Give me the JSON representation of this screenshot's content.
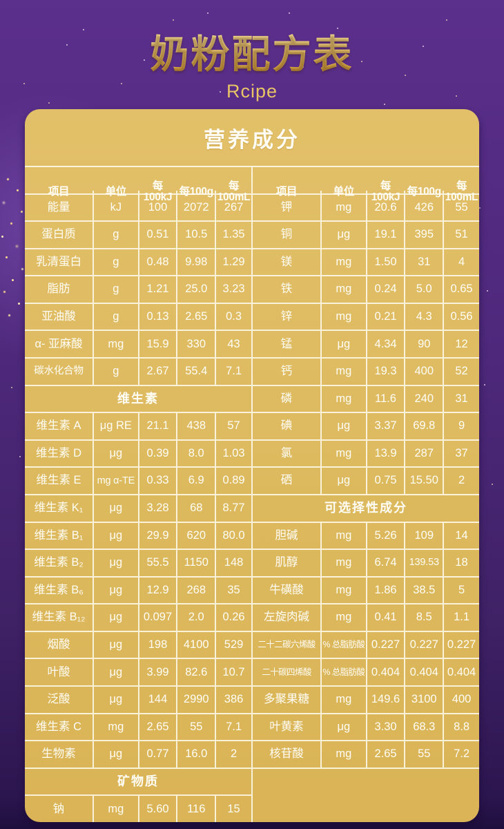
{
  "page": {
    "title": "奶粉配方表",
    "subtitle": "Rcipe"
  },
  "card": {
    "title": "营养成分"
  },
  "colors": {
    "background_purple": "#4f2b7e",
    "card_gold": "#ddb95e",
    "title_gold": "#e7bc55",
    "grid_line": "#fffcf0",
    "text": "#ffffff"
  },
  "tables": [
    {
      "name": "left",
      "rows": [
        {
          "type": "header",
          "cells": [
            "项目",
            "单位",
            "每100kJ",
            "每100g",
            "每100mL"
          ]
        },
        {
          "type": "row",
          "cells": [
            "能量",
            "kJ",
            "100",
            "2072",
            "267"
          ]
        },
        {
          "type": "row",
          "cells": [
            "蛋白质",
            "g",
            "0.51",
            "10.5",
            "1.35"
          ]
        },
        {
          "type": "row",
          "cells": [
            "乳清蛋白",
            "g",
            "0.48",
            "9.98",
            "1.29"
          ]
        },
        {
          "type": "row",
          "cells": [
            "脂肪",
            "g",
            "1.21",
            "25.0",
            "3.23"
          ]
        },
        {
          "type": "row",
          "cells": [
            "亚油酸",
            "g",
            "0.13",
            "2.65",
            "0.3"
          ]
        },
        {
          "type": "row",
          "cells": [
            "α- 亚麻酸",
            "mg",
            "15.9",
            "330",
            "43"
          ]
        },
        {
          "type": "row",
          "cells": [
            "碳水化合物",
            "g",
            "2.67",
            "55.4",
            "7.1"
          ]
        },
        {
          "type": "section",
          "label": "维生素"
        },
        {
          "type": "row",
          "cells": [
            "维生素 A",
            "μg RE",
            "21.1",
            "438",
            "57"
          ]
        },
        {
          "type": "row",
          "cells": [
            "维生素 D",
            "μg",
            "0.39",
            "8.0",
            "1.03"
          ]
        },
        {
          "type": "row",
          "cells": [
            "维生素 E",
            "mg α-TE",
            "0.33",
            "6.9",
            "0.89"
          ]
        },
        {
          "type": "row",
          "cells": [
            "维生素 K₁",
            "μg",
            "3.28",
            "68",
            "8.77"
          ]
        },
        {
          "type": "row",
          "cells": [
            "维生素 B₁",
            "μg",
            "29.9",
            "620",
            "80.0"
          ]
        },
        {
          "type": "row",
          "cells": [
            "维生素 B₂",
            "μg",
            "55.5",
            "1150",
            "148"
          ]
        },
        {
          "type": "row",
          "cells": [
            "维生素 B₆",
            "μg",
            "12.9",
            "268",
            "35"
          ]
        },
        {
          "type": "row",
          "cells": [
            "维生素 B₁₂",
            "μg",
            "0.097",
            "2.0",
            "0.26"
          ]
        },
        {
          "type": "row",
          "cells": [
            "烟酸",
            "μg",
            "198",
            "4100",
            "529"
          ]
        },
        {
          "type": "row",
          "cells": [
            "叶酸",
            "μg",
            "3.99",
            "82.6",
            "10.7"
          ]
        },
        {
          "type": "row",
          "cells": [
            "泛酸",
            "μg",
            "144",
            "2990",
            "386"
          ]
        },
        {
          "type": "row",
          "cells": [
            "维生素 C",
            "mg",
            "2.65",
            "55",
            "7.1"
          ]
        },
        {
          "type": "row",
          "cells": [
            "生物素",
            "μg",
            "0.77",
            "16.0",
            "2"
          ]
        },
        {
          "type": "section",
          "label": "矿物质"
        },
        {
          "type": "row",
          "cells": [
            "钠",
            "mg",
            "5.60",
            "116",
            "15"
          ]
        }
      ]
    },
    {
      "name": "right",
      "rows": [
        {
          "type": "header",
          "cells": [
            "项目",
            "单位",
            "每100kJ",
            "每100g",
            "每100mL"
          ]
        },
        {
          "type": "row",
          "cells": [
            "钾",
            "mg",
            "20.6",
            "426",
            "55"
          ]
        },
        {
          "type": "row",
          "cells": [
            "铜",
            "μg",
            "19.1",
            "395",
            "51"
          ]
        },
        {
          "type": "row",
          "cells": [
            "镁",
            "mg",
            "1.50",
            "31",
            "4"
          ]
        },
        {
          "type": "row",
          "cells": [
            "铁",
            "mg",
            "0.24",
            "5.0",
            "0.65"
          ]
        },
        {
          "type": "row",
          "cells": [
            "锌",
            "mg",
            "0.21",
            "4.3",
            "0.56"
          ]
        },
        {
          "type": "row",
          "cells": [
            "锰",
            "μg",
            "4.34",
            "90",
            "12"
          ]
        },
        {
          "type": "row",
          "cells": [
            "钙",
            "mg",
            "19.3",
            "400",
            "52"
          ]
        },
        {
          "type": "row",
          "cells": [
            "磷",
            "mg",
            "11.6",
            "240",
            "31"
          ]
        },
        {
          "type": "row",
          "cells": [
            "碘",
            "μg",
            "3.37",
            "69.8",
            "9"
          ]
        },
        {
          "type": "row",
          "cells": [
            "氯",
            "mg",
            "13.9",
            "287",
            "37"
          ]
        },
        {
          "type": "row",
          "cells": [
            "硒",
            "μg",
            "0.75",
            "15.50",
            "2"
          ]
        },
        {
          "type": "section",
          "label": "可选择性成分"
        },
        {
          "type": "row",
          "cells": [
            "胆碱",
            "mg",
            "5.26",
            "109",
            "14"
          ]
        },
        {
          "type": "row",
          "cells": [
            "肌醇",
            "mg",
            "6.74",
            "139.53",
            "18"
          ]
        },
        {
          "type": "row",
          "cells": [
            "牛磺酸",
            "mg",
            "1.86",
            "38.5",
            "5"
          ]
        },
        {
          "type": "row",
          "cells": [
            "左旋肉碱",
            "mg",
            "0.41",
            "8.5",
            "1.1"
          ]
        },
        {
          "type": "row",
          "cells": [
            "二十二碳六烯酸",
            "% 总脂肪酸",
            "0.227",
            "0.227",
            "0.227"
          ]
        },
        {
          "type": "row",
          "cells": [
            "二十碳四烯酸",
            "% 总脂肪酸",
            "0.404",
            "0.404",
            "0.404"
          ]
        },
        {
          "type": "row",
          "cells": [
            "多聚果糖",
            "mg",
            "149.6",
            "3100",
            "400"
          ]
        },
        {
          "type": "row",
          "cells": [
            "叶黄素",
            "μg",
            "3.30",
            "68.3",
            "8.8"
          ]
        },
        {
          "type": "row",
          "cells": [
            "核苷酸",
            "mg",
            "2.65",
            "55",
            "7.2"
          ]
        }
      ]
    }
  ]
}
